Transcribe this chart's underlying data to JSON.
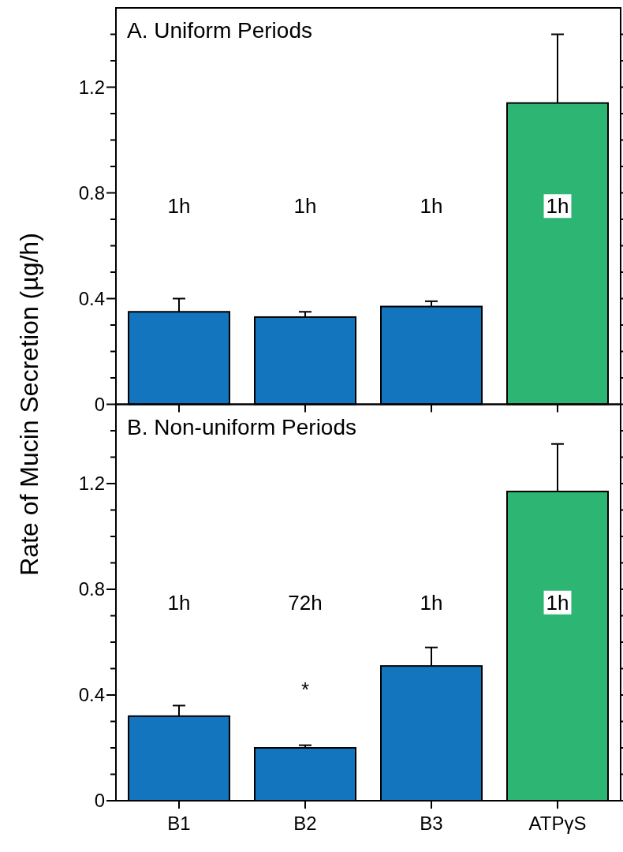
{
  "chart_data": [
    {
      "type": "bar",
      "title": "A. Uniform Periods",
      "ylabel": "Rate of Mucin Secretion (µg/h)",
      "categories": [
        null,
        null,
        null,
        null
      ],
      "values": [
        0.35,
        0.33,
        0.37,
        1.14
      ],
      "colors": [
        "#1275be",
        "#1275be",
        "#1275be",
        "#2db673"
      ],
      "errors": [
        0.05,
        0.02,
        0.02,
        0.26
      ],
      "ylim": [
        0,
        1.5
      ],
      "yticks": [
        0,
        {
          "value": 0.1,
          "label": null
        },
        {
          "value": 0.2,
          "label": null
        },
        {
          "value": 0.3,
          "label": null
        },
        0.4,
        {
          "value": 0.5,
          "label": null
        },
        {
          "value": 0.6,
          "label": null
        },
        {
          "value": 0.7,
          "label": null
        },
        0.8,
        {
          "value": 0.9,
          "label": null
        },
        {
          "value": 1.0,
          "label": null
        },
        {
          "value": 1.1,
          "label": null
        },
        1.2,
        {
          "value": 1.3,
          "label": null
        },
        {
          "value": 1.4,
          "label": null
        }
      ],
      "tick_labels": "y",
      "grid": false,
      "annotations": [
        "1h",
        "1h",
        "1h",
        "1h"
      ]
    },
    {
      "type": "bar",
      "title": "B. Non-uniform Periods",
      "categories": [
        "B1",
        "B2",
        "B3",
        "ATPγS"
      ],
      "values": [
        0.32,
        0.2,
        0.51,
        1.17
      ],
      "colors": [
        "#1275be",
        "#1275be",
        "#1275be",
        "#2db673"
      ],
      "errors": [
        0.04,
        0.01,
        0.07,
        0.18
      ],
      "ylim": [
        0,
        1.5
      ],
      "yticks": [
        0,
        {
          "value": 0.1,
          "label": null
        },
        {
          "value": 0.2,
          "label": null
        },
        {
          "value": 0.3,
          "label": null
        },
        0.4,
        {
          "value": 0.5,
          "label": null
        },
        {
          "value": 0.6,
          "label": null
        },
        {
          "value": 0.7,
          "label": null
        },
        0.8,
        {
          "value": 0.9,
          "label": null
        },
        {
          "value": 1.0,
          "label": null
        },
        {
          "value": 1.1,
          "label": null
        },
        1.2,
        {
          "value": 1.3,
          "label": null
        },
        {
          "value": 1.4,
          "label": null
        }
      ],
      "grid": false,
      "annotations": [
        "1h",
        "72h",
        "1h",
        "1h",
        "*"
      ]
    }
  ]
}
